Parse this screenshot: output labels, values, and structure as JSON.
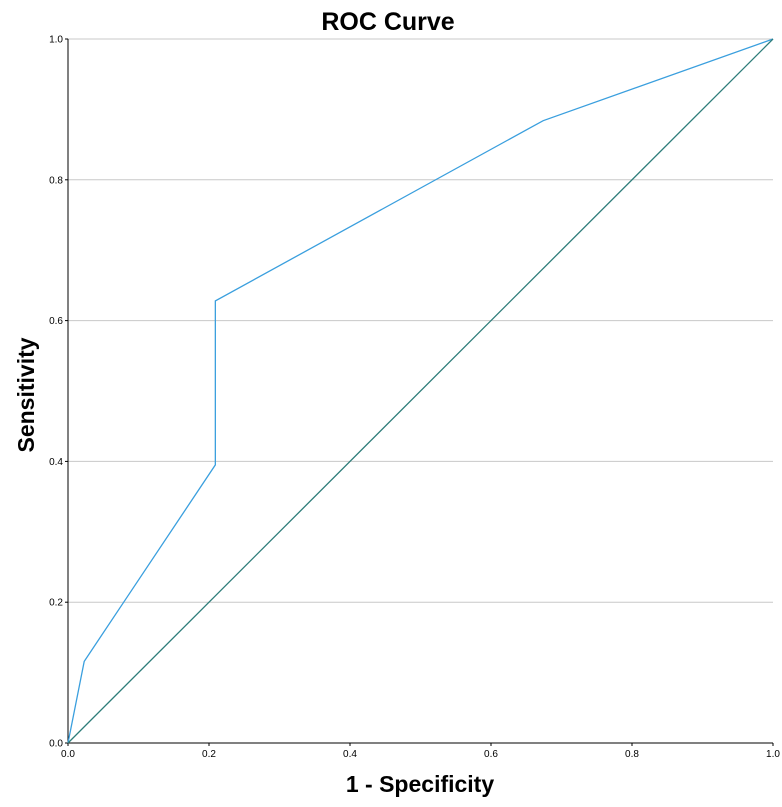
{
  "chart_data": {
    "type": "line",
    "title": "ROC Curve",
    "xlabel": "1 - Specificity",
    "ylabel": "Sensitivity",
    "xlim": [
      0,
      1
    ],
    "ylim": [
      0,
      1
    ],
    "xticks": [
      "0.0",
      "0.2",
      "0.4",
      "0.6",
      "0.8",
      "1.0"
    ],
    "yticks": [
      "0.0",
      "0.2",
      "0.4",
      "0.6",
      "0.8",
      "1.0"
    ],
    "grid": "horizontal",
    "series": [
      {
        "color": "#3a9fde",
        "x": [
          0.0,
          0.023,
          0.209,
          0.209,
          0.674,
          1.0
        ],
        "y": [
          0.0,
          0.116,
          0.395,
          0.628,
          0.884,
          1.0
        ]
      },
      {
        "color": "#2e7d7a",
        "x": [
          0.0,
          1.0
        ],
        "y": [
          0.0,
          1.0
        ]
      }
    ],
    "colors": {
      "grid": "#c8c8c8",
      "axis": "#000000"
    }
  }
}
